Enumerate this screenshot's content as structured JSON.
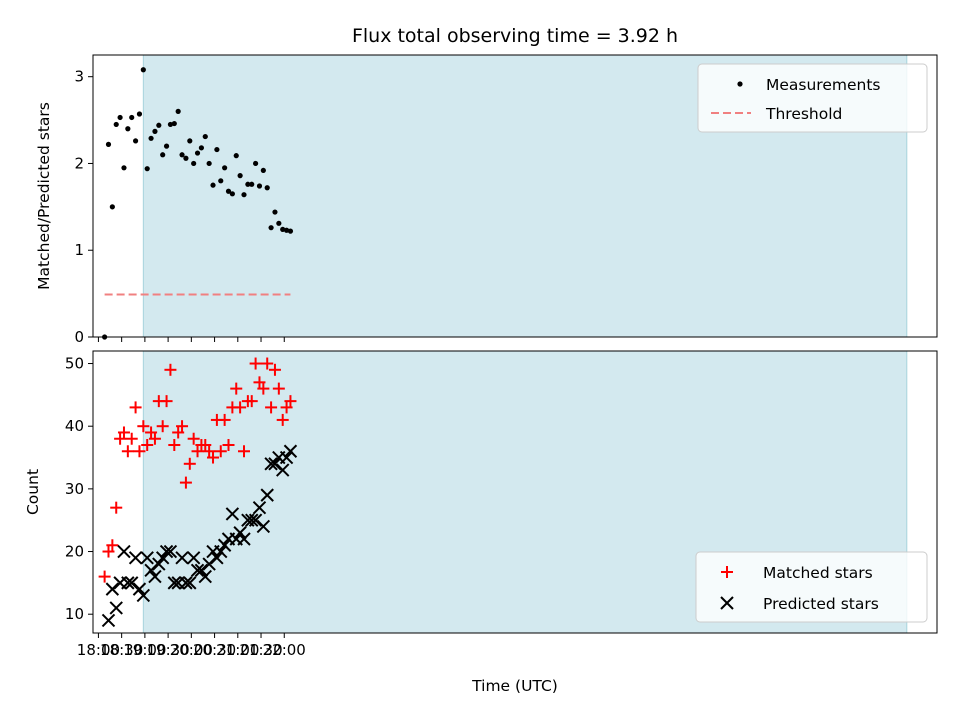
{
  "chart_data": [
    {
      "type": "scatter",
      "title": "Flux total observing time = 3.92 h",
      "xlabel": "",
      "ylabel": "Matched/Predicted stars",
      "ylim": [
        0,
        3.25
      ],
      "yticks": [
        0,
        1,
        2,
        3
      ],
      "xlim_minutes": [
        -7,
        1083
      ],
      "shaded_region_minutes": [
        58,
        1044
      ],
      "shaded_color": "#d3e9ef",
      "legend_position": "top-right",
      "series": [
        {
          "name": "Measurements",
          "marker": "dot",
          "color": "#000000",
          "x": [
            "18:08",
            "18:13",
            "18:18",
            "18:23",
            "18:28",
            "18:33",
            "18:38",
            "18:43",
            "18:48",
            "18:53",
            "18:58",
            "19:03",
            "19:08",
            "19:13",
            "19:18",
            "19:23",
            "19:28",
            "19:33",
            "19:38",
            "19:43",
            "19:48",
            "19:53",
            "19:58",
            "20:03",
            "20:08",
            "20:13",
            "20:18",
            "20:23",
            "20:28",
            "20:33",
            "20:38",
            "20:43",
            "20:48",
            "20:53",
            "20:58",
            "21:03",
            "21:08",
            "21:13",
            "21:18",
            "21:23",
            "21:28",
            "21:33",
            "21:38",
            "21:43",
            "21:48",
            "21:53",
            "21:58",
            "22:03",
            "22:08"
          ],
          "y": [
            0,
            2.22,
            1.5,
            2.45,
            2.53,
            1.95,
            2.4,
            2.53,
            2.26,
            2.57,
            3.08,
            1.94,
            2.29,
            2.37,
            2.44,
            2.1,
            2.2,
            2.45,
            2.46,
            2.6,
            2.1,
            2.06,
            2.26,
            2.0,
            2.12,
            2.18,
            2.31,
            2.0,
            1.75,
            2.16,
            1.8,
            1.95,
            1.68,
            1.65,
            2.09,
            1.86,
            1.64,
            1.76,
            1.76,
            2.0,
            1.74,
            1.92,
            1.72,
            1.26,
            1.44,
            1.31,
            1.24,
            1.23,
            1.22
          ]
        },
        {
          "name": "Threshold",
          "marker": "dashed-line",
          "color": "#f08080",
          "x": [
            "18:08",
            "22:08"
          ],
          "y": [
            0.49,
            0.49
          ]
        }
      ]
    },
    {
      "type": "scatter",
      "title": "",
      "xlabel": "Time (UTC)",
      "ylabel": "Count",
      "ylim": [
        7,
        52
      ],
      "yticks": [
        10,
        20,
        30,
        40,
        50
      ],
      "xlim_minutes": [
        -7,
        1083
      ],
      "xtick_labels": [
        "18:00",
        "18:30",
        "19:00",
        "19:30",
        "20:00",
        "20:30",
        "21:00",
        "21:30",
        "22:00"
      ],
      "shaded_region_minutes": [
        58,
        1044
      ],
      "shaded_color": "#d3e9ef",
      "legend_position": "bottom-right",
      "series": [
        {
          "name": "Matched stars",
          "marker": "plus",
          "color": "#ff0000",
          "x": [
            "18:08",
            "18:13",
            "18:18",
            "18:23",
            "18:28",
            "18:33",
            "18:38",
            "18:43",
            "18:48",
            "18:53",
            "18:58",
            "19:03",
            "19:08",
            "19:13",
            "19:18",
            "19:23",
            "19:28",
            "19:33",
            "19:38",
            "19:43",
            "19:48",
            "19:53",
            "19:58",
            "20:03",
            "20:08",
            "20:13",
            "20:18",
            "20:23",
            "20:28",
            "20:33",
            "20:38",
            "20:43",
            "20:48",
            "20:53",
            "20:58",
            "21:03",
            "21:08",
            "21:13",
            "21:18",
            "21:23",
            "21:28",
            "21:33",
            "21:38",
            "21:43",
            "21:48",
            "21:53",
            "21:58",
            "22:03",
            "22:08"
          ],
          "y": [
            16,
            20,
            21,
            27,
            38,
            39,
            36,
            38,
            43,
            36,
            40,
            37,
            39,
            38,
            44,
            40,
            44,
            49,
            37,
            39,
            40,
            31,
            34,
            38,
            36,
            37,
            37,
            36,
            35,
            41,
            36,
            41,
            37,
            43,
            46,
            43,
            36,
            44,
            44,
            50,
            47,
            46,
            50,
            43,
            49,
            46,
            41,
            43,
            44
          ]
        },
        {
          "name": "Predicted stars",
          "marker": "x",
          "color": "#000000",
          "x": [
            "18:13",
            "18:18",
            "18:23",
            "18:28",
            "18:33",
            "18:38",
            "18:43",
            "18:48",
            "18:53",
            "18:58",
            "19:03",
            "19:08",
            "19:13",
            "19:18",
            "19:23",
            "19:28",
            "19:33",
            "19:38",
            "19:43",
            "19:48",
            "19:53",
            "19:58",
            "20:03",
            "20:08",
            "20:13",
            "20:18",
            "20:23",
            "20:28",
            "20:33",
            "20:38",
            "20:43",
            "20:48",
            "20:53",
            "20:58",
            "21:03",
            "21:08",
            "21:13",
            "21:18",
            "21:23",
            "21:28",
            "21:33",
            "21:38",
            "21:43",
            "21:48",
            "21:53",
            "21:58",
            "22:03",
            "22:08"
          ],
          "y": [
            9,
            14,
            11,
            15,
            20,
            15,
            15,
            19,
            14,
            13,
            19,
            17,
            16,
            18,
            19,
            20,
            20,
            15,
            15,
            19,
            15,
            15,
            19,
            17,
            17,
            16,
            18,
            20,
            19,
            20,
            21,
            22,
            26,
            22,
            23,
            22,
            25,
            25,
            25,
            27,
            24,
            29,
            34,
            34,
            35,
            33,
            35,
            36
          ]
        }
      ]
    }
  ]
}
